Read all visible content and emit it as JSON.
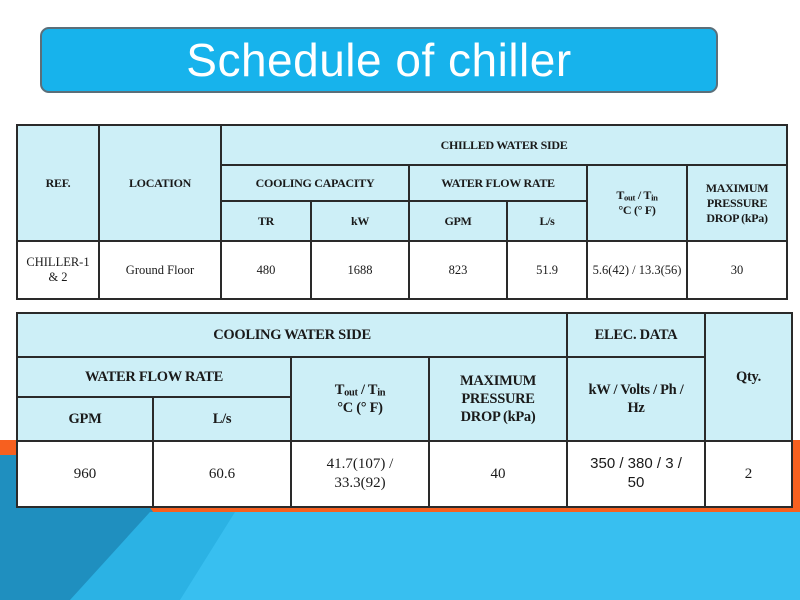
{
  "title": "Schedule of chiller",
  "colors": {
    "title_bg": "#17b3ec",
    "header_bg": "#cdeff7",
    "orange": "#f7601f",
    "blue_dark": "#1d8fc0",
    "blue_light": "#2ab4e6"
  },
  "table1": {
    "ref_header": "REF.",
    "location_header": "LOCATION",
    "chilled_water_side": "CHILLED WATER SIDE",
    "cooling_capacity": "COOLING CAPACITY",
    "water_flow_rate": "WATER FLOW RATE",
    "tout_t": "T",
    "tout_sub": "out",
    "tin_t": " / T",
    "tin_sub": "in",
    "temp_unit": "°C (° F)",
    "max_pressure": [
      "MAXIMUM",
      "PRESSURE",
      "DROP (kPa)"
    ],
    "units": [
      "TR",
      "kW",
      "GPM",
      "L/s"
    ],
    "row": {
      "ref": "CHILLER-1 & 2",
      "location": "Ground Floor",
      "tr": "480",
      "kw": "1688",
      "gpm": "823",
      "ls": "51.9",
      "temp": "5.6(42) / 13.3(56)",
      "pressure": "30"
    }
  },
  "table2": {
    "cooling_water_side": "COOLING WATER SIDE",
    "elec_data": "ELEC. DATA",
    "qty_header": "Qty.",
    "water_flow_rate": "WATER FLOW RATE",
    "tout_t": "T",
    "tout_sub": "out",
    "tin_t": " / T",
    "tin_sub": "in",
    "temp_unit": "°C (° F)",
    "max_pressure": [
      "MAXIMUM",
      "PRESSURE",
      "DROP (kPa)"
    ],
    "elec_units": [
      "kW / Volts / Ph /",
      "Hz"
    ],
    "units": [
      "GPM",
      "L/s"
    ],
    "row": {
      "gpm": "960",
      "ls": "60.6",
      "temp": [
        "41.7(107) /",
        "33.3(92)"
      ],
      "pressure": "40",
      "elec": [
        "350 / 380 / 3 /",
        "50"
      ],
      "qty": "2"
    }
  }
}
